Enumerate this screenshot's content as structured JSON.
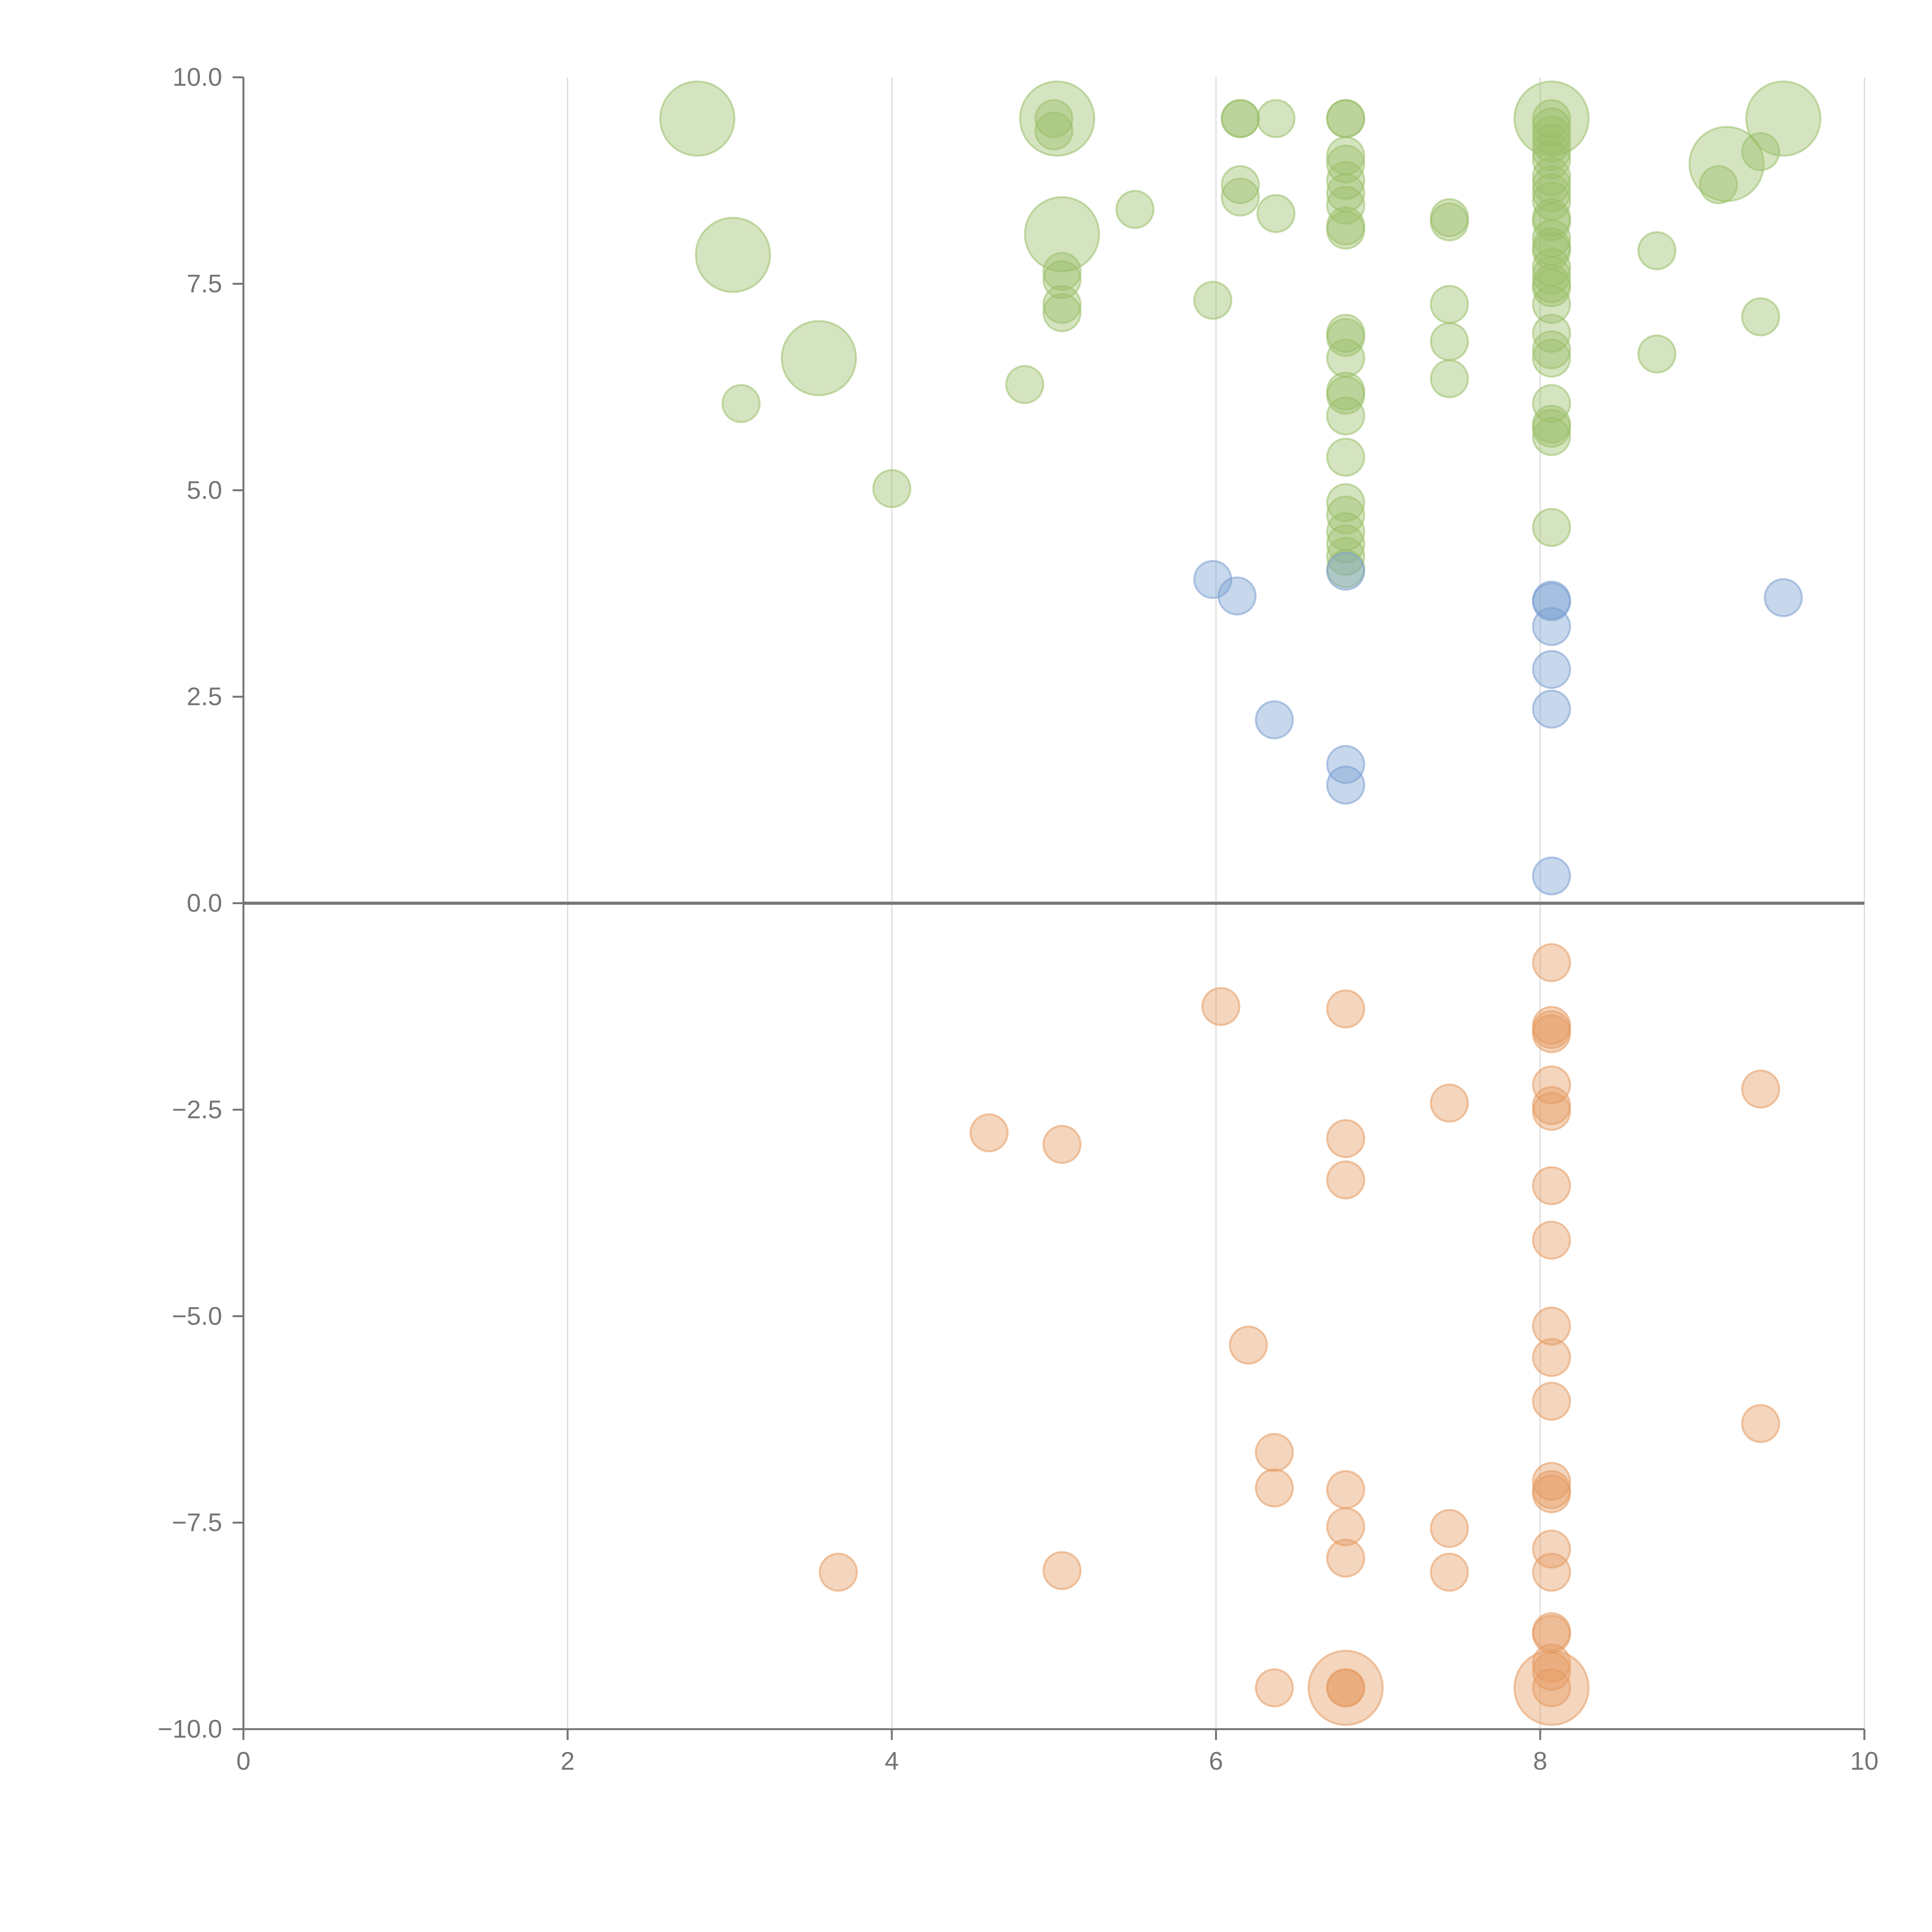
{
  "chart_data": {
    "type": "scatter",
    "title": "",
    "xlabel": "",
    "ylabel": "",
    "xlim": [
      0,
      10
    ],
    "ylim": [
      -10,
      10
    ],
    "x_ticks": [
      "0",
      "2",
      "4",
      "6",
      "8",
      "10"
    ],
    "y_ticks": [
      "10.0",
      "7.5",
      "5.0",
      "2.5",
      "0.0",
      "−2.5",
      "−5.0",
      "−7.5",
      "−10.0"
    ],
    "grid": {
      "vertical": true,
      "horizontal": false
    },
    "colors": {
      "green": "#9bbf6a",
      "blue": "#7a9fd1",
      "orange": "#e59a61"
    },
    "series": [
      {
        "color": "#9bbf6a",
        "points": [
          [
            2.8,
            9.5,
            2
          ],
          [
            3.02,
            7.85,
            2
          ],
          [
            3.55,
            6.6,
            2
          ],
          [
            5.02,
            9.5,
            2
          ],
          [
            5.05,
            8.1,
            2
          ],
          [
            9.5,
            9.5,
            2
          ],
          [
            9.15,
            8.95,
            2
          ],
          [
            8.07,
            9.5,
            2
          ],
          [
            3.07,
            6.05,
            1
          ],
          [
            4.0,
            5.02,
            1
          ],
          [
            4.82,
            6.28,
            1
          ],
          [
            5.5,
            8.4,
            1
          ],
          [
            5.0,
            9.5,
            1
          ],
          [
            5.0,
            9.35,
            1
          ],
          [
            5.05,
            7.65,
            1
          ],
          [
            5.05,
            7.55,
            1
          ],
          [
            5.05,
            7.25,
            1
          ],
          [
            5.05,
            7.15,
            1
          ],
          [
            5.98,
            7.3,
            1
          ],
          [
            6.15,
            9.5,
            1
          ],
          [
            6.15,
            9.5,
            1
          ],
          [
            6.15,
            8.7,
            1
          ],
          [
            6.15,
            8.55,
            1
          ],
          [
            6.37,
            9.5,
            1
          ],
          [
            6.37,
            8.35,
            1
          ],
          [
            6.8,
            9.5,
            1
          ],
          [
            6.8,
            9.5,
            1
          ],
          [
            6.8,
            9.05,
            1
          ],
          [
            6.8,
            8.95,
            1
          ],
          [
            6.8,
            8.75,
            1
          ],
          [
            6.8,
            8.6,
            1
          ],
          [
            6.8,
            8.45,
            1
          ],
          [
            6.8,
            8.2,
            1
          ],
          [
            6.8,
            8.15,
            1
          ],
          [
            6.8,
            6.9,
            1
          ],
          [
            6.8,
            6.85,
            1
          ],
          [
            6.8,
            6.6,
            1
          ],
          [
            6.8,
            6.2,
            1
          ],
          [
            6.8,
            6.15,
            1
          ],
          [
            6.8,
            5.9,
            1
          ],
          [
            6.8,
            5.4,
            1
          ],
          [
            6.8,
            4.85,
            1
          ],
          [
            6.8,
            4.7,
            1
          ],
          [
            6.8,
            4.5,
            1
          ],
          [
            6.8,
            4.35,
            1
          ],
          [
            6.8,
            4.2,
            1
          ],
          [
            6.8,
            4.05,
            1
          ],
          [
            7.44,
            8.3,
            1
          ],
          [
            7.44,
            8.25,
            1
          ],
          [
            7.44,
            7.25,
            1
          ],
          [
            7.44,
            6.8,
            1
          ],
          [
            7.44,
            6.35,
            1
          ],
          [
            8.07,
            9.5,
            1
          ],
          [
            8.07,
            9.4,
            1
          ],
          [
            8.07,
            9.3,
            1
          ],
          [
            8.07,
            9.2,
            1
          ],
          [
            8.07,
            9.1,
            1
          ],
          [
            8.07,
            9.0,
            1
          ],
          [
            8.07,
            8.8,
            1
          ],
          [
            8.07,
            8.7,
            1
          ],
          [
            8.07,
            8.6,
            1
          ],
          [
            8.07,
            8.5,
            1
          ],
          [
            8.07,
            8.3,
            1
          ],
          [
            8.07,
            8.25,
            1
          ],
          [
            8.07,
            8.05,
            1
          ],
          [
            8.07,
            7.95,
            1
          ],
          [
            8.07,
            7.9,
            1
          ],
          [
            8.07,
            7.7,
            1
          ],
          [
            8.07,
            7.6,
            1
          ],
          [
            8.07,
            7.5,
            1
          ],
          [
            8.07,
            7.45,
            1
          ],
          [
            8.07,
            7.25,
            1
          ],
          [
            8.07,
            6.9,
            1
          ],
          [
            8.07,
            6.7,
            1
          ],
          [
            8.07,
            6.6,
            1
          ],
          [
            8.07,
            6.05,
            1
          ],
          [
            8.07,
            5.8,
            1
          ],
          [
            8.07,
            5.75,
            1
          ],
          [
            8.07,
            5.65,
            1
          ],
          [
            8.07,
            4.55,
            1
          ],
          [
            8.72,
            7.9,
            1
          ],
          [
            8.72,
            6.65,
            1
          ],
          [
            9.1,
            8.7,
            1
          ],
          [
            9.36,
            9.1,
            1
          ],
          [
            9.36,
            7.1,
            1
          ]
        ]
      },
      {
        "color": "#7a9fd1",
        "points": [
          [
            5.98,
            3.92,
            1
          ],
          [
            6.13,
            3.72,
            1
          ],
          [
            6.36,
            2.22,
            1
          ],
          [
            6.8,
            4.02,
            1
          ],
          [
            6.8,
            1.68,
            1
          ],
          [
            6.8,
            1.43,
            1
          ],
          [
            8.07,
            3.67,
            1
          ],
          [
            8.07,
            3.65,
            1
          ],
          [
            8.07,
            3.35,
            1
          ],
          [
            8.07,
            2.83,
            1
          ],
          [
            8.07,
            2.35,
            1
          ],
          [
            8.07,
            0.33,
            1
          ],
          [
            9.5,
            3.7,
            1
          ]
        ]
      },
      {
        "color": "#e59a61",
        "points": [
          [
            6.8,
            -9.5,
            2
          ],
          [
            8.07,
            -9.5,
            2
          ],
          [
            3.67,
            -8.1,
            1
          ],
          [
            4.6,
            -2.78,
            1
          ],
          [
            5.05,
            -2.92,
            1
          ],
          [
            5.05,
            -8.08,
            1
          ],
          [
            6.03,
            -1.25,
            1
          ],
          [
            6.2,
            -5.35,
            1
          ],
          [
            6.36,
            -6.65,
            1
          ],
          [
            6.36,
            -7.08,
            1
          ],
          [
            6.36,
            -9.5,
            1
          ],
          [
            6.8,
            -1.28,
            1
          ],
          [
            6.8,
            -2.85,
            1
          ],
          [
            6.8,
            -3.35,
            1
          ],
          [
            6.8,
            -7.1,
            1
          ],
          [
            6.8,
            -7.55,
            1
          ],
          [
            6.8,
            -7.93,
            1
          ],
          [
            6.8,
            -9.5,
            1
          ],
          [
            6.8,
            -9.5,
            1
          ],
          [
            7.44,
            -2.42,
            1
          ],
          [
            7.44,
            -7.57,
            1
          ],
          [
            7.44,
            -8.1,
            1
          ],
          [
            8.07,
            -0.72,
            1
          ],
          [
            8.07,
            -1.48,
            1
          ],
          [
            8.07,
            -1.53,
            1
          ],
          [
            8.07,
            -1.58,
            1
          ],
          [
            8.07,
            -2.2,
            1
          ],
          [
            8.07,
            -2.45,
            1
          ],
          [
            8.07,
            -2.52,
            1
          ],
          [
            8.07,
            -3.42,
            1
          ],
          [
            8.07,
            -4.08,
            1
          ],
          [
            8.07,
            -5.12,
            1
          ],
          [
            8.07,
            -5.5,
            1
          ],
          [
            8.07,
            -6.03,
            1
          ],
          [
            8.07,
            -7.0,
            1
          ],
          [
            8.07,
            -7.1,
            1
          ],
          [
            8.07,
            -7.15,
            1
          ],
          [
            8.07,
            -7.82,
            1
          ],
          [
            8.07,
            -8.1,
            1
          ],
          [
            8.07,
            -8.82,
            1
          ],
          [
            8.07,
            -8.85,
            1
          ],
          [
            8.07,
            -9.2,
            1
          ],
          [
            8.07,
            -9.3,
            1
          ],
          [
            8.07,
            -9.5,
            1
          ],
          [
            9.36,
            -2.25,
            1
          ],
          [
            9.36,
            -6.3,
            1
          ]
        ]
      }
    ]
  }
}
